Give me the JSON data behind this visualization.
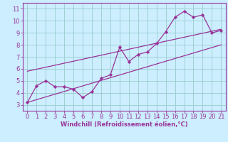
{
  "main_x": [
    0,
    1,
    2,
    3,
    4,
    5,
    6,
    7,
    8,
    9,
    10,
    11,
    12,
    13,
    14,
    15,
    16,
    17,
    18,
    19,
    20,
    21
  ],
  "main_y": [
    3.2,
    4.6,
    5.0,
    4.5,
    4.5,
    4.3,
    3.6,
    4.1,
    5.2,
    5.5,
    7.8,
    6.6,
    7.2,
    7.4,
    8.1,
    9.1,
    10.3,
    10.8,
    10.3,
    10.5,
    9.0,
    9.2
  ],
  "line1_x": [
    0,
    21
  ],
  "line1_y": [
    3.2,
    8.0
  ],
  "line2_x": [
    0,
    21
  ],
  "line2_y": [
    5.8,
    9.3
  ],
  "marker_color": "#993399",
  "line_color": "#993399",
  "bg_color": "#cceeff",
  "grid_color": "#99cccc",
  "axis_color": "#993399",
  "xlabel": "Windchill (Refroidissement éolien,°C)",
  "xlim": [
    -0.5,
    21.5
  ],
  "ylim": [
    2.5,
    11.5
  ],
  "xticks": [
    0,
    1,
    2,
    3,
    4,
    5,
    6,
    7,
    8,
    9,
    10,
    11,
    12,
    13,
    14,
    15,
    16,
    17,
    18,
    19,
    20,
    21
  ],
  "yticks": [
    3,
    4,
    5,
    6,
    7,
    8,
    9,
    10,
    11
  ],
  "label_fontsize": 6.0,
  "tick_fontsize": 6.0
}
